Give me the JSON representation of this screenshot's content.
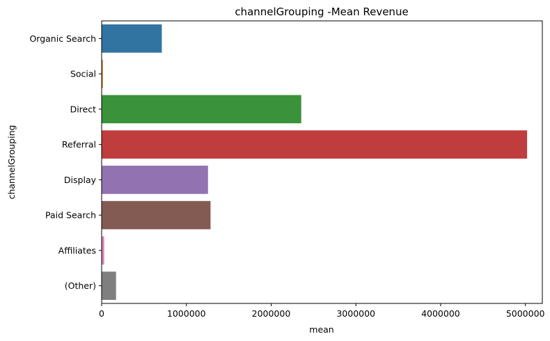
{
  "chart_data": {
    "type": "bar",
    "orientation": "horizontal",
    "title": "channelGrouping -Mean Revenue",
    "xlabel": "mean",
    "ylabel": "channelGrouping",
    "categories": [
      "Organic Search",
      "Social",
      "Direct",
      "Referral",
      "Display",
      "Paid Search",
      "Affiliates",
      "(Other)"
    ],
    "values": [
      710000,
      15000,
      2355000,
      5020000,
      1255000,
      1285000,
      30000,
      170000
    ],
    "colors": [
      "#3274a1",
      "#e1812c",
      "#3a923a",
      "#c03d3e",
      "#9372b2",
      "#845b53",
      "#d684bd",
      "#7f7f7f"
    ],
    "xlim": [
      0,
      5200000
    ],
    "xticks": [
      0,
      1000000,
      2000000,
      3000000,
      4000000,
      5000000
    ],
    "xtick_labels": [
      "0",
      "1000000",
      "2000000",
      "3000000",
      "4000000",
      "5000000"
    ],
    "grid": false,
    "legend": "none"
  }
}
